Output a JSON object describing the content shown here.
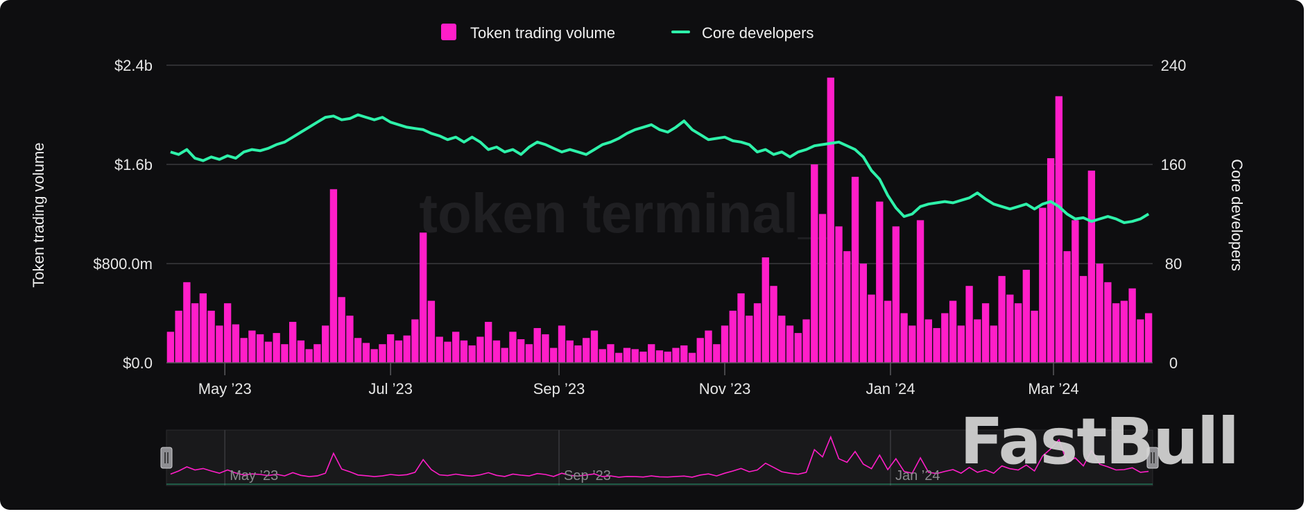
{
  "watermark": "token terminal_",
  "logo": "FastBull",
  "navigator": {
    "tick_labels": [
      "May ’23",
      "Sep ’23",
      "Jan ’24"
    ]
  },
  "colors": {
    "volume": "#ff1ec8",
    "developers": "#2ef2aa",
    "background": "#0e0e10",
    "grid": "#3a3a3e"
  },
  "chart_data": {
    "type": "bar+line",
    "legend": [
      "Token trading volume",
      "Core developers"
    ],
    "legend_position": "top",
    "grid": true,
    "xlabel": "",
    "ylabel_left": "Token trading volume",
    "ylabel_right": "Core developers",
    "ylim_left": [
      0,
      2400000000
    ],
    "ylim_right": [
      0,
      240
    ],
    "yticks_left": [
      "$0.0",
      "$800.0m",
      "$1.6b",
      "$2.4b"
    ],
    "yticks_left_values": [
      0,
      800000000,
      1600000000,
      2400000000
    ],
    "yticks_right": [
      "0",
      "80",
      "160",
      "240"
    ],
    "xticks": [
      "May ’23",
      "Jul ’23",
      "Sep ’23",
      "Nov ’23",
      "Jan ’24",
      "Mar ’24"
    ],
    "xticks_dates": [
      "2023-05-01",
      "2023-07-01",
      "2023-09-01",
      "2023-11-01",
      "2024-01-01",
      "2024-03-01"
    ],
    "x": [
      "2023-04-11",
      "2023-04-14",
      "2023-04-17",
      "2023-04-20",
      "2023-04-23",
      "2023-04-26",
      "2023-04-29",
      "2023-05-02",
      "2023-05-05",
      "2023-05-08",
      "2023-05-11",
      "2023-05-14",
      "2023-05-17",
      "2023-05-20",
      "2023-05-23",
      "2023-05-26",
      "2023-05-29",
      "2023-06-01",
      "2023-06-04",
      "2023-06-07",
      "2023-06-10",
      "2023-06-13",
      "2023-06-16",
      "2023-06-19",
      "2023-06-22",
      "2023-06-25",
      "2023-06-28",
      "2023-07-01",
      "2023-07-04",
      "2023-07-07",
      "2023-07-10",
      "2023-07-13",
      "2023-07-16",
      "2023-07-19",
      "2023-07-22",
      "2023-07-25",
      "2023-07-28",
      "2023-07-31",
      "2023-08-03",
      "2023-08-06",
      "2023-08-09",
      "2023-08-12",
      "2023-08-15",
      "2023-08-18",
      "2023-08-21",
      "2023-08-24",
      "2023-08-27",
      "2023-08-30",
      "2023-09-02",
      "2023-09-05",
      "2023-09-08",
      "2023-09-11",
      "2023-09-14",
      "2023-09-17",
      "2023-09-20",
      "2023-09-23",
      "2023-09-26",
      "2023-09-29",
      "2023-10-02",
      "2023-10-05",
      "2023-10-08",
      "2023-10-11",
      "2023-10-14",
      "2023-10-17",
      "2023-10-20",
      "2023-10-23",
      "2023-10-26",
      "2023-10-29",
      "2023-11-01",
      "2023-11-04",
      "2023-11-07",
      "2023-11-10",
      "2023-11-13",
      "2023-11-16",
      "2023-11-19",
      "2023-11-22",
      "2023-11-25",
      "2023-11-28",
      "2023-12-01",
      "2023-12-04",
      "2023-12-07",
      "2023-12-10",
      "2023-12-13",
      "2023-12-16",
      "2023-12-19",
      "2023-12-22",
      "2023-12-25",
      "2023-12-28",
      "2023-12-31",
      "2024-01-03",
      "2024-01-06",
      "2024-01-09",
      "2024-01-12",
      "2024-01-15",
      "2024-01-18",
      "2024-01-21",
      "2024-01-24",
      "2024-01-27",
      "2024-01-30",
      "2024-02-02",
      "2024-02-05",
      "2024-02-08",
      "2024-02-11",
      "2024-02-14",
      "2024-02-17",
      "2024-02-20",
      "2024-02-23",
      "2024-02-26",
      "2024-02-29",
      "2024-03-03",
      "2024-03-06",
      "2024-03-09",
      "2024-03-12",
      "2024-03-15",
      "2024-03-18",
      "2024-03-21",
      "2024-03-24",
      "2024-03-27",
      "2024-03-30",
      "2024-04-02",
      "2024-04-05"
    ],
    "series": [
      {
        "name": "Token trading volume",
        "type": "bar",
        "axis": "left",
        "unit": "USD millions",
        "values": [
          250,
          420,
          650,
          480,
          560,
          420,
          300,
          480,
          310,
          200,
          260,
          230,
          170,
          240,
          150,
          330,
          180,
          110,
          150,
          300,
          1400,
          530,
          380,
          200,
          160,
          110,
          150,
          230,
          180,
          220,
          350,
          1050,
          500,
          210,
          170,
          250,
          180,
          140,
          210,
          330,
          180,
          120,
          250,
          190,
          150,
          280,
          230,
          120,
          300,
          180,
          140,
          200,
          260,
          110,
          150,
          80,
          120,
          110,
          90,
          150,
          100,
          90,
          120,
          140,
          80,
          200,
          260,
          150,
          300,
          420,
          560,
          380,
          480,
          850,
          620,
          380,
          300,
          240,
          350,
          1600,
          1200,
          2300,
          1100,
          900,
          1500,
          800,
          550,
          1300,
          500,
          1100,
          400,
          300,
          1150,
          350,
          280,
          400,
          500,
          300,
          620,
          350,
          480,
          300,
          700,
          550,
          480,
          750,
          420,
          1250,
          1650,
          2150,
          900,
          1150,
          700,
          1550,
          800,
          650,
          480,
          500,
          600,
          350,
          400
        ]
      },
      {
        "name": "Core developers",
        "type": "line",
        "axis": "right",
        "values": [
          170,
          168,
          172,
          165,
          163,
          166,
          164,
          167,
          165,
          170,
          172,
          171,
          173,
          176,
          178,
          182,
          186,
          190,
          194,
          198,
          199,
          196,
          197,
          200,
          198,
          196,
          198,
          194,
          192,
          190,
          189,
          188,
          185,
          183,
          180,
          182,
          178,
          182,
          178,
          172,
          174,
          170,
          172,
          168,
          174,
          178,
          176,
          173,
          170,
          172,
          170,
          168,
          172,
          176,
          178,
          181,
          185,
          188,
          190,
          192,
          188,
          186,
          190,
          195,
          188,
          184,
          180,
          181,
          182,
          179,
          178,
          176,
          170,
          172,
          168,
          170,
          166,
          170,
          172,
          175,
          176,
          177,
          178,
          175,
          172,
          166,
          155,
          148,
          135,
          125,
          118,
          120,
          126,
          128,
          129,
          130,
          129,
          131,
          133,
          137,
          132,
          128,
          126,
          124,
          126,
          128,
          124,
          128,
          130,
          126,
          120,
          116,
          117,
          114,
          116,
          118,
          116,
          113,
          114,
          116,
          120
        ]
      }
    ]
  }
}
